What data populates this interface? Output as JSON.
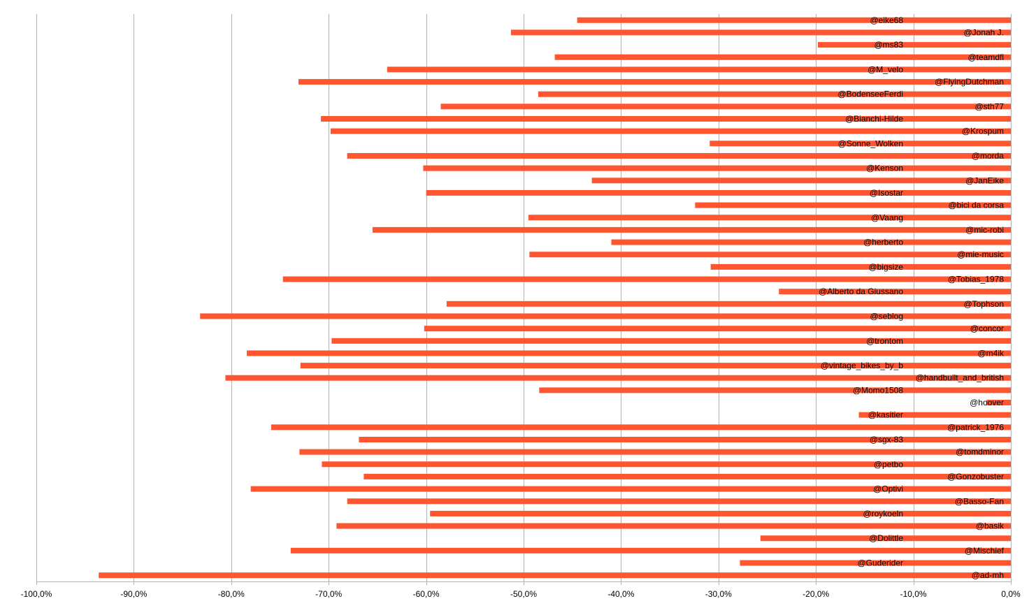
{
  "chart_data": {
    "type": "bar",
    "orientation": "horizontal",
    "xlim": [
      -100,
      0
    ],
    "x_tick_labels": [
      "-100,0%",
      "-90,0%",
      "-80,0%",
      "-70,0%",
      "-60,0%",
      "-50,0%",
      "-40,0%",
      "-30,0%",
      "-20,0%",
      "-10,0%",
      "0,0%"
    ],
    "x_tick_values": [
      -100,
      -90,
      -80,
      -70,
      -60,
      -50,
      -40,
      -30,
      -20,
      -10,
      0
    ],
    "grid": true,
    "bar_color": "#ff5530",
    "grid_color": "#b3b3b3",
    "categories": [
      "@eike68",
      "@Jonah J.",
      "@ms83",
      "@teamdfl",
      "@M_velo",
      "@FlyingDutchman",
      "@BodenseeFerdi",
      "@sth77",
      "@Bianchi-Hilde",
      "@Krospum",
      "@Sonne_Wolken",
      "@morda",
      "@Kenson",
      "@JanEike",
      "@Isostar",
      "@bici da corsa",
      "@Vaang",
      "@mic-robi",
      "@herberto",
      "@mie-music",
      "@bigsize",
      "@Tobias_1978",
      "@Alberto da Giussano",
      "@Tophson",
      "@seblog",
      "@concor",
      "@trontom",
      "@m4ik",
      "@vintage_bikes_by_b",
      "@handbuilt_and_british",
      "@Momo1508",
      "@hoover",
      "@kasitier",
      "@patrick_1976",
      "@sgx-83",
      "@tomdminor",
      "@petbo",
      "@Gonzobuster",
      "@Optivi",
      "@Basso-Fan",
      "@roykoeln",
      "@basik",
      "@Dolittle",
      "@Mischief",
      "@Guderider",
      "@ad-mh"
    ],
    "label_column": [
      "left",
      "right",
      "left",
      "right",
      "left",
      "right",
      "left",
      "right",
      "left",
      "right",
      "left",
      "right",
      "left",
      "right",
      "left",
      "right",
      "left",
      "right",
      "left",
      "right",
      "left",
      "right",
      "left",
      "right",
      "left",
      "right",
      "left",
      "right",
      "left",
      "right",
      "left",
      "right",
      "left",
      "right",
      "left",
      "right",
      "left",
      "right",
      "left",
      "right",
      "left",
      "right",
      "left",
      "right",
      "left",
      "right"
    ],
    "values": [
      -44.5,
      -51.3,
      -19.8,
      -46.8,
      -64.0,
      -73.1,
      -48.5,
      -58.5,
      -70.8,
      -69.8,
      -30.9,
      -68.1,
      -60.3,
      -43.0,
      -60.0,
      -32.4,
      -49.5,
      -65.5,
      -41.0,
      -49.4,
      -30.8,
      -74.7,
      -23.8,
      -57.9,
      -83.2,
      -60.2,
      -69.7,
      -78.4,
      -72.9,
      -80.6,
      -48.4,
      -2.5,
      -15.6,
      -75.9,
      -66.9,
      -73.0,
      -70.7,
      -66.4,
      -78.0,
      -68.1,
      -59.6,
      -69.2,
      -25.7,
      -73.9,
      -27.8,
      -93.6
    ],
    "title": "",
    "xlabel": "",
    "ylabel": ""
  }
}
